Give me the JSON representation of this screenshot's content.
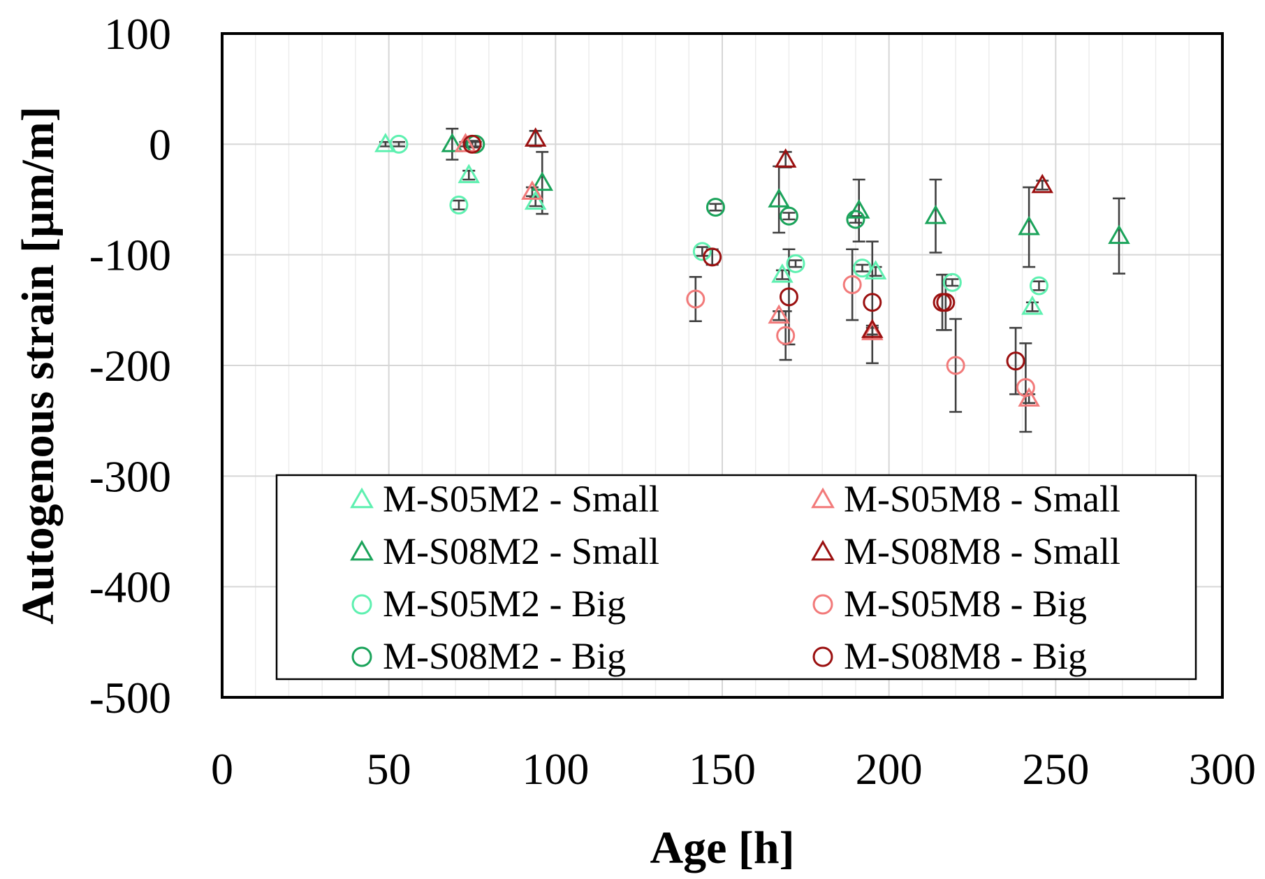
{
  "chart_data": {
    "type": "scatter",
    "title": "",
    "xlabel": "Age [h]",
    "ylabel": "Autogenous strain [μm/m]",
    "xlim": [
      0,
      300
    ],
    "ylim": [
      -500,
      100
    ],
    "x_ticks": [
      0,
      50,
      100,
      150,
      200,
      250,
      300
    ],
    "y_ticks": [
      100,
      0,
      -100,
      -200,
      -300,
      -400,
      -500
    ],
    "x_tick_labels": [
      "0",
      "50",
      "100",
      "150",
      "200",
      "250",
      "300"
    ],
    "y_tick_labels": [
      "100",
      "0",
      "-100",
      "-200",
      "-300",
      "-400",
      "-500"
    ],
    "grid": true,
    "legend_position": "bottom",
    "series": [
      {
        "name": "M-S05M2 - Small",
        "marker": "triangle",
        "color": "#5ef0b0",
        "points": [
          {
            "x": 49,
            "y": 0,
            "err": 2
          },
          {
            "x": 74,
            "y": -28,
            "err": 4
          },
          {
            "x": 94,
            "y": -52,
            "err": 4
          },
          {
            "x": 168,
            "y": -118,
            "err": 4
          },
          {
            "x": 196,
            "y": -115,
            "err": 4
          },
          {
            "x": 243,
            "y": -147,
            "err": 4
          }
        ]
      },
      {
        "name": "M-S08M2 - Small",
        "marker": "triangle",
        "color": "#1aa35a",
        "points": [
          {
            "x": 69,
            "y": 0,
            "err": 14
          },
          {
            "x": 96,
            "y": -35,
            "err": 28
          },
          {
            "x": 167,
            "y": -50,
            "err": 30
          },
          {
            "x": 191,
            "y": -60,
            "err": 28
          },
          {
            "x": 214,
            "y": -65,
            "err": 33
          },
          {
            "x": 242,
            "y": -75,
            "err": 36
          },
          {
            "x": 269,
            "y": -83,
            "err": 34
          }
        ]
      },
      {
        "name": "M-S05M2 - Big",
        "marker": "circle",
        "color": "#5ef0b0",
        "points": [
          {
            "x": 53,
            "y": 0,
            "err": 2
          },
          {
            "x": 71,
            "y": -55,
            "err": 4
          },
          {
            "x": 144,
            "y": -97,
            "err": 4
          },
          {
            "x": 172,
            "y": -108,
            "err": 3
          },
          {
            "x": 192,
            "y": -112,
            "err": 3
          },
          {
            "x": 219,
            "y": -125,
            "err": 3
          },
          {
            "x": 245,
            "y": -128,
            "err": 4
          }
        ]
      },
      {
        "name": "M-S08M2 - Big",
        "marker": "circle",
        "color": "#1aa35a",
        "points": [
          {
            "x": 76,
            "y": 0,
            "err": 2
          },
          {
            "x": 148,
            "y": -57,
            "err": 3
          },
          {
            "x": 170,
            "y": -65,
            "err": 3
          },
          {
            "x": 190,
            "y": -68,
            "err": 3
          }
        ]
      },
      {
        "name": "M-S05M8 - Small",
        "marker": "triangle",
        "color": "#f27a7a",
        "points": [
          {
            "x": 73,
            "y": 0,
            "err": 2
          },
          {
            "x": 93,
            "y": -43,
            "err": 4
          },
          {
            "x": 167,
            "y": -155,
            "err": 4
          },
          {
            "x": 195,
            "y": -170,
            "err": 4
          },
          {
            "x": 242,
            "y": -230,
            "err": 4
          }
        ]
      },
      {
        "name": "M-S08M8 - Small",
        "marker": "triangle",
        "color": "#9b1010",
        "points": [
          {
            "x": 94,
            "y": 5,
            "err": 7
          },
          {
            "x": 169,
            "y": -14,
            "err": 7
          },
          {
            "x": 195,
            "y": -168,
            "err": 4
          },
          {
            "x": 246,
            "y": -37,
            "err": 4
          }
        ]
      },
      {
        "name": "M-S05M8 - Big",
        "marker": "circle",
        "color": "#f27a7a",
        "points": [
          {
            "x": 142,
            "y": -140,
            "err": 20
          },
          {
            "x": 169,
            "y": -173,
            "err": 22
          },
          {
            "x": 189,
            "y": -127,
            "err": 32
          },
          {
            "x": 220,
            "y": -200,
            "err": 42
          },
          {
            "x": 241,
            "y": -220,
            "err": 40
          }
        ]
      },
      {
        "name": "M-S08M8 - Big",
        "marker": "circle",
        "color": "#9b1010",
        "points": [
          {
            "x": 75,
            "y": 0,
            "err": 3
          },
          {
            "x": 147,
            "y": -102,
            "err": 7
          },
          {
            "x": 170,
            "y": -138,
            "err": 43
          },
          {
            "x": 195,
            "y": -143,
            "err": 55
          },
          {
            "x": 216,
            "y": -143,
            "err": 25
          },
          {
            "x": 217,
            "y": -143,
            "err": 25
          },
          {
            "x": 238,
            "y": -196,
            "err": 30
          }
        ]
      }
    ]
  }
}
